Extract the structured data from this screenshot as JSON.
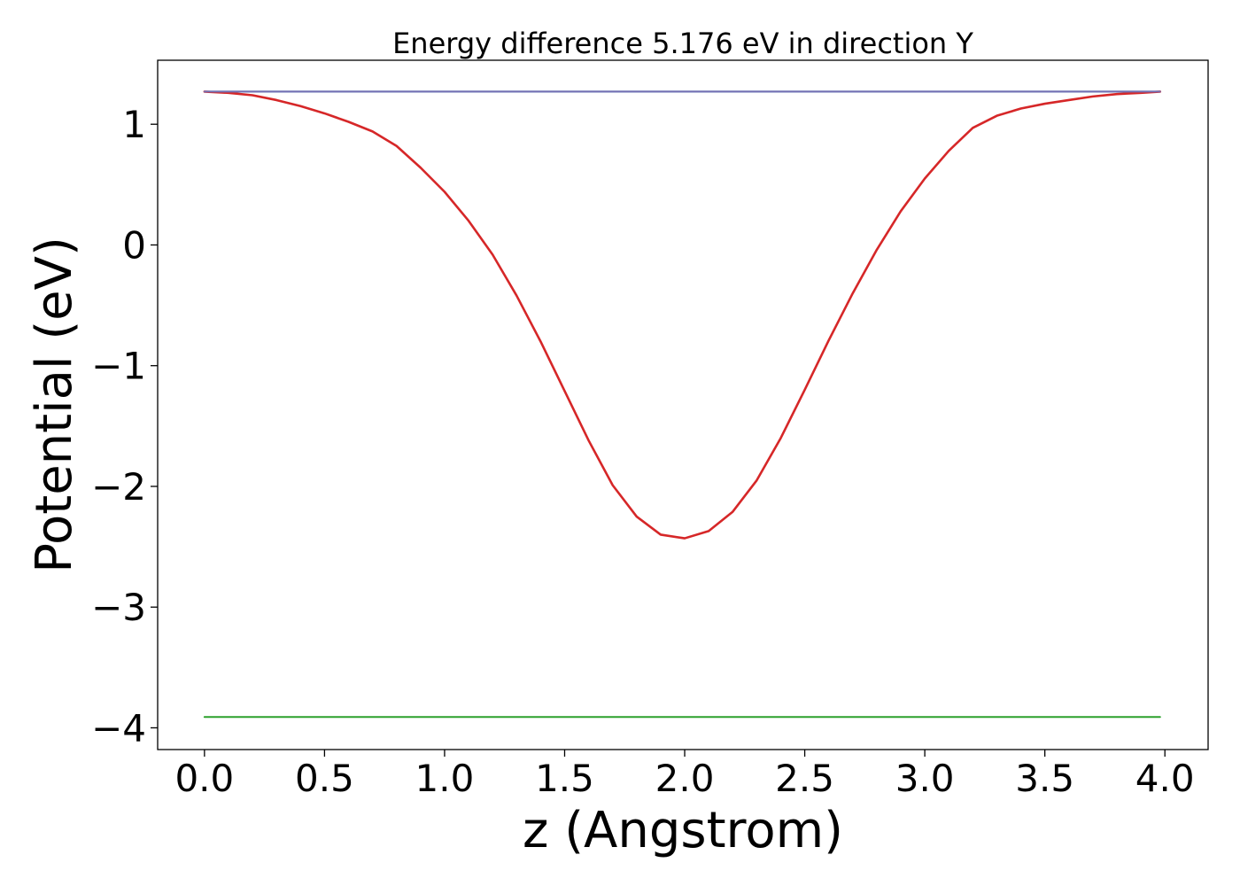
{
  "chart_data": {
    "type": "line",
    "title": "Energy difference 5.176 eV in direction Y",
    "xlabel": "z (Angstrom)",
    "ylabel": "Potential (eV)",
    "xlim": [
      -0.195,
      4.18
    ],
    "ylim": [
      -4.18,
      1.53
    ],
    "xticks": [
      0.0,
      0.5,
      1.0,
      1.5,
      2.0,
      2.5,
      3.0,
      3.5,
      4.0
    ],
    "xtick_labels": [
      "0.0",
      "0.5",
      "1.0",
      "1.5",
      "2.0",
      "2.5",
      "3.0",
      "3.5",
      "4.0"
    ],
    "yticks": [
      1,
      0,
      -1,
      -2,
      -3,
      -4
    ],
    "ytick_labels": [
      "1",
      "0",
      "−1",
      "−2",
      "−3",
      "−4"
    ],
    "grid": false,
    "series": [
      {
        "color": "#1f77b4",
        "x": [
          0.0,
          3.98
        ],
        "y": [
          1.27,
          1.27
        ]
      },
      {
        "color": "#2ca02c",
        "x": [
          0.0,
          3.98
        ],
        "y": [
          -3.91,
          -3.91
        ]
      },
      {
        "color": "#d62728",
        "x": [
          0.0,
          0.1,
          0.2,
          0.3,
          0.4,
          0.5,
          0.6,
          0.7,
          0.8,
          0.9,
          1.0,
          1.1,
          1.2,
          1.3,
          1.4,
          1.5,
          1.6,
          1.7,
          1.8,
          1.9,
          2.0,
          2.1,
          2.2,
          2.3,
          2.4,
          2.5,
          2.6,
          2.7,
          2.8,
          2.9,
          3.0,
          3.1,
          3.2,
          3.3,
          3.4,
          3.5,
          3.6,
          3.7,
          3.8,
          3.9,
          3.98
        ],
        "y": [
          1.27,
          1.26,
          1.24,
          1.2,
          1.15,
          1.09,
          1.02,
          0.94,
          0.82,
          0.64,
          0.44,
          0.2,
          -0.08,
          -0.42,
          -0.8,
          -1.21,
          -1.62,
          -1.99,
          -2.25,
          -2.4,
          -2.43,
          -2.37,
          -2.21,
          -1.95,
          -1.6,
          -1.2,
          -0.79,
          -0.4,
          -0.04,
          0.28,
          0.55,
          0.78,
          0.97,
          1.07,
          1.13,
          1.17,
          1.2,
          1.23,
          1.25,
          1.26,
          1.27
        ]
      },
      {
        "color": "#7570b3",
        "x": [
          0.0,
          3.98
        ],
        "y": [
          1.27,
          1.27
        ]
      }
    ]
  }
}
